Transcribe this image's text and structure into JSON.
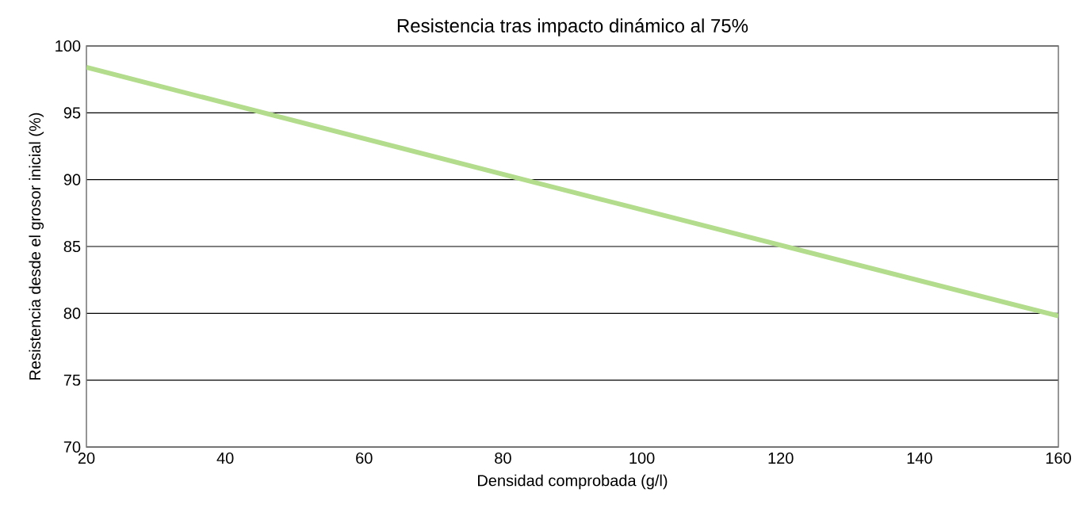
{
  "chart_data": {
    "type": "line",
    "title": "Resistencia tras impacto dinámico al 75%",
    "xlabel": "Densidad comprobada (g/l)",
    "ylabel": "Resistencia desde el grosor inicial (%)",
    "x": [
      20,
      83,
      160
    ],
    "series": [
      {
        "color": "#b3dc8c",
        "values": [
          98.4,
          90.0,
          79.8
        ]
      }
    ],
    "xlim": [
      20,
      160
    ],
    "ylim": [
      70,
      100
    ],
    "xticks": [
      20,
      40,
      60,
      80,
      100,
      120,
      140,
      160
    ],
    "yticks": [
      70,
      75,
      80,
      85,
      90,
      95,
      100
    ],
    "grid": "y",
    "legend": false,
    "marker": "none",
    "line_style": "solid"
  }
}
